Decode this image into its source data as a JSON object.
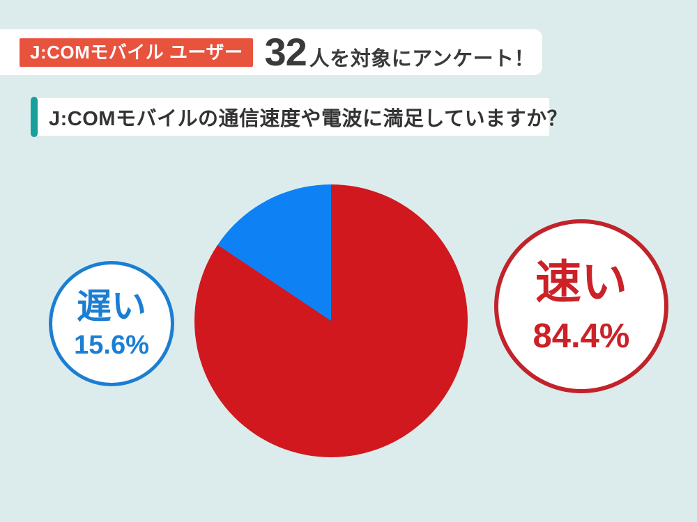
{
  "header": {
    "badge_label": "J:COMモバイル ユーザー",
    "count": "32",
    "suffix": "人を対象にアンケート！"
  },
  "question": {
    "text": "J:COMモバイルの通信速度や電波に満足していますか？"
  },
  "chart_data": {
    "type": "pie",
    "title": "J:COMモバイルの通信速度や電波に満足していますか？",
    "sample_size": 32,
    "categories": [
      "速い",
      "遅い"
    ],
    "values": [
      84.4,
      15.6
    ],
    "colors": [
      "#d1181f",
      "#0e82f5"
    ],
    "start_angle_deg": 0,
    "direction": "clockwise",
    "legend_position": "side-label-circles"
  },
  "labels": {
    "fast": {
      "name": "速い",
      "pct": "84.4%"
    },
    "slow": {
      "name": "遅い",
      "pct": "15.6%"
    }
  },
  "colors": {
    "background": "#dcecec",
    "panel": "#ffffff",
    "badge_background": "#e8533e",
    "badge_text": "#ffffff",
    "accent_teal": "#17a09e",
    "heading_text": "#3a3a3a",
    "pie_fast_red": "#d1181f",
    "pie_slow_blue": "#0e82f5",
    "label_slow_blue": "#1b7ed3",
    "label_fast_red": "#c2232a"
  }
}
